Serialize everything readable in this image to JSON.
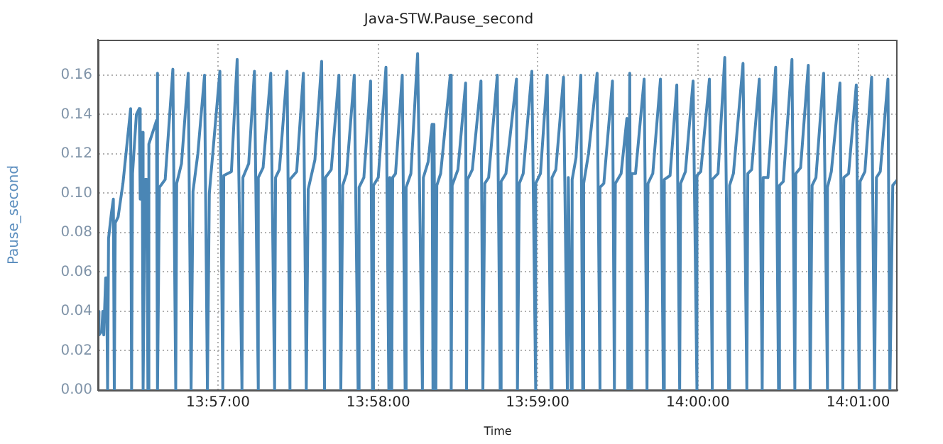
{
  "chart_data": {
    "type": "line",
    "title": "Java-STW.Pause_second",
    "xlabel": "Time",
    "ylabel": "Pause_second",
    "xlim": [
      13.9375,
      14.0208
    ],
    "xticks": [
      {
        "value": 13.95,
        "label": "13:57:00"
      },
      {
        "value": 13.9667,
        "label": "13:58:00"
      },
      {
        "value": 13.9833,
        "label": "13:59:00"
      },
      {
        "value": 14.0,
        "label": "14:00:00"
      },
      {
        "value": 14.0167,
        "label": "14:01:00"
      }
    ],
    "ylim": [
      0,
      0.178
    ],
    "yticks": [
      {
        "value": 0,
        "label": "0.00"
      },
      {
        "value": 0.02,
        "label": "0.02"
      },
      {
        "value": 0.04,
        "label": "0.04"
      },
      {
        "value": 0.06,
        "label": "0.06"
      },
      {
        "value": 0.08,
        "label": "0.08"
      },
      {
        "value": 0.1,
        "label": "0.10"
      },
      {
        "value": 0.12,
        "label": "0.12"
      },
      {
        "value": 0.14,
        "label": "0.14"
      },
      {
        "value": 0.16,
        "label": "0.16"
      }
    ],
    "grid": true,
    "legend": false,
    "marker": "none",
    "line_style": "solid",
    "color": "#4a86b5",
    "x": [
      13.9375,
      13.9376,
      13.9379,
      13.938,
      13.9381,
      13.9383,
      13.9384,
      13.9385,
      13.9386,
      13.9389,
      13.9391,
      13.9392,
      13.9393,
      13.9396,
      13.9401,
      13.9409,
      13.941,
      13.9411,
      13.9415,
      13.9418,
      13.9419,
      13.9421,
      13.9422,
      13.9424,
      13.9426,
      13.9427,
      13.9428,
      13.9436,
      13.9437,
      13.9437,
      13.9439,
      13.9445,
      13.9453,
      13.9456,
      13.9457,
      13.9462,
      13.9469,
      13.9472,
      13.9474,
      13.9479,
      13.9486,
      13.9489,
      13.9491,
      13.9502,
      13.9505,
      13.9506,
      13.9514,
      13.952,
      13.9525,
      13.9526,
      13.9532,
      13.9538,
      13.9542,
      13.9542,
      13.9547,
      13.9555,
      13.9559,
      13.956,
      13.9564,
      13.9572,
      13.9575,
      13.9575,
      13.9582,
      13.9589,
      13.9592,
      13.9594,
      13.9601,
      13.9608,
      13.9611,
      13.9612,
      13.9618,
      13.9626,
      13.9628,
      13.963,
      13.9634,
      13.9642,
      13.9646,
      13.9647,
      13.9652,
      13.9659,
      13.9661,
      13.9662,
      13.9667,
      13.9675,
      13.9678,
      13.9679,
      13.9681,
      13.9682,
      13.9685,
      13.9692,
      13.9695,
      13.9696,
      13.9701,
      13.9708,
      13.9713,
      13.9714,
      13.9719,
      13.9723,
      13.9724,
      13.9725,
      13.9727,
      13.9728,
      13.9732,
      13.9742,
      13.9743,
      13.9744,
      13.975,
      13.9758,
      13.9759,
      13.976,
      13.9765,
      13.9774,
      13.9776,
      13.9778,
      13.9782,
      13.9791,
      13.9794,
      13.9795,
      13.98,
      13.9811,
      13.9812,
      13.9814,
      13.9818,
      13.9827,
      13.9831,
      13.9831,
      13.9836,
      13.9843,
      13.9847,
      13.9848,
      13.9852,
      13.986,
      13.9864,
      13.9865,
      13.9868,
      13.9869,
      13.9873,
      13.9878,
      13.988,
      13.9881,
      13.9886,
      13.9895,
      13.9898,
      13.9898,
      13.9902,
      13.9911,
      13.9913,
      13.9914,
      13.992,
      13.9926,
      13.9927,
      13.9929,
      13.993,
      13.9931,
      13.9935,
      13.9944,
      13.9947,
      13.9948,
      13.9953,
      13.9961,
      13.9964,
      13.9965,
      13.9971,
      13.9978,
      13.9981,
      13.9982,
      13.9987,
      13.9995,
      13.9999,
      13.9999,
      14.0003,
      14.0012,
      14.0015,
      14.0015,
      14.0021,
      14.0028,
      14.0032,
      14.0033,
      14.0037,
      14.0047,
      14.0051,
      14.0052,
      14.0056,
      14.0064,
      14.0067,
      14.0068,
      14.0073,
      14.0081,
      14.0084,
      14.0085,
      14.0089,
      14.0098,
      14.0101,
      14.0102,
      14.0107,
      14.0115,
      14.0117,
      14.0119,
      14.0123,
      14.0131,
      14.0135,
      14.0135,
      14.0139,
      14.0148,
      14.0151,
      14.0152,
      14.0157,
      14.0165,
      14.0168,
      14.0169,
      14.0174,
      14.0181,
      14.0184,
      14.0186,
      14.019,
      14.0198,
      14.02,
      14.0203,
      14.0208
    ],
    "values": [
      0.04,
      0.028,
      0.03,
      0.04,
      0.028,
      0.057,
      0.057,
      0,
      0.077,
      0.09,
      0.097,
      0,
      0.085,
      0.088,
      0.105,
      0.143,
      0,
      0.11,
      0.14,
      0.143,
      0.097,
      0.131,
      0,
      0.107,
      0.107,
      0,
      0.125,
      0.137,
      0.161,
      0,
      0.103,
      0.107,
      0.163,
      0,
      0.105,
      0.115,
      0.161,
      0,
      0.101,
      0.12,
      0.16,
      0,
      0.1,
      0.162,
      0,
      0.109,
      0.111,
      0.168,
      0,
      0.108,
      0.115,
      0.162,
      0,
      0.108,
      0.113,
      0.161,
      0,
      0.108,
      0.112,
      0.162,
      0,
      0.107,
      0.111,
      0.161,
      0,
      0.102,
      0.117,
      0.167,
      0,
      0.108,
      0.112,
      0.16,
      0,
      0.104,
      0.11,
      0.16,
      0,
      0.103,
      0.108,
      0.157,
      0,
      0.104,
      0.108,
      0.164,
      0,
      0.108,
      0,
      0.108,
      0.11,
      0.16,
      0,
      0.103,
      0.11,
      0.171,
      0,
      0.108,
      0.116,
      0.135,
      0,
      0.135,
      0,
      0.104,
      0.11,
      0.16,
      0,
      0.104,
      0.112,
      0.156,
      0,
      0.107,
      0.112,
      0.157,
      0,
      0.105,
      0.108,
      0.16,
      0,
      0.106,
      0.11,
      0.158,
      0,
      0.105,
      0.11,
      0.162,
      0,
      0.105,
      0.11,
      0.16,
      0,
      0.108,
      0.112,
      0.159,
      0,
      0.108,
      0,
      0.107,
      0.118,
      0.16,
      0,
      0.105,
      0.12,
      0.161,
      0,
      0.103,
      0.105,
      0.157,
      0,
      0.105,
      0.11,
      0.138,
      0,
      0.161,
      0,
      0.11,
      0.11,
      0.158,
      0,
      0.105,
      0.11,
      0.158,
      0,
      0.107,
      0.109,
      0.155,
      0,
      0.105,
      0.111,
      0.157,
      0,
      0.109,
      0.111,
      0.158,
      0,
      0.107,
      0.11,
      0.169,
      0,
      0.104,
      0.11,
      0.166,
      0,
      0.11,
      0.112,
      0.158,
      0,
      0.108,
      0.108,
      0.164,
      0,
      0.104,
      0.106,
      0.168,
      0,
      0.11,
      0.113,
      0.165,
      0,
      0.104,
      0.108,
      0.161,
      0,
      0.103,
      0.111,
      0.156,
      0,
      0.108,
      0.11,
      0.155,
      0,
      0.106,
      0.111,
      0.159,
      0,
      0.108,
      0.111,
      0.158,
      0,
      0.104,
      0.107
    ]
  }
}
